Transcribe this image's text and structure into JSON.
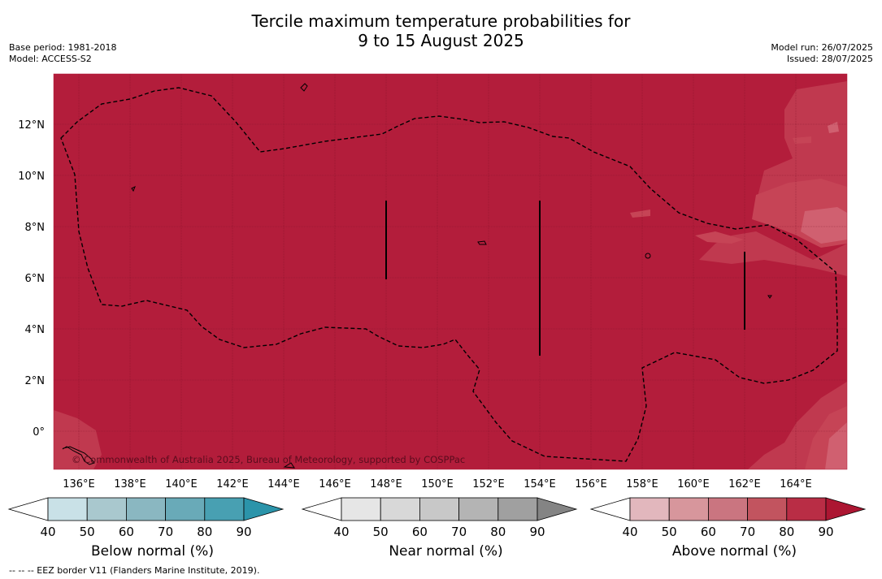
{
  "title": {
    "line1": "Tercile maximum temperature probabilities for",
    "line2": "9 to 15 August 2025"
  },
  "meta": {
    "base_period": "Base period: 1981-2018",
    "model": "Model: ACCESS-S2",
    "model_run": "Model run: 26/07/2025",
    "issued": "Issued: 28/07/2025"
  },
  "map": {
    "lat_labels": [
      "12°N",
      "10°N",
      "8°N",
      "6°N",
      "4°N",
      "2°N",
      "0°"
    ],
    "lon_labels": [
      "136°E",
      "138°E",
      "140°E",
      "142°E",
      "144°E",
      "146°E",
      "148°E",
      "150°E",
      "152°E",
      "154°E",
      "156°E",
      "158°E",
      "160°E",
      "162°E",
      "164°E"
    ],
    "copyright": "© Commonwealth of Australia 2025, Bureau of Meteorology, supported by COSPPac",
    "background_color": "#b31d3b",
    "lighter_color": "#c64456",
    "lightest_color": "#d06070"
  },
  "colorbars": [
    {
      "title": "Below normal (%)",
      "ticks": [
        "40",
        "50",
        "60",
        "70",
        "80",
        "90"
      ],
      "colors": [
        "#ffffff",
        "#c9e1e7",
        "#a9c8ce",
        "#8ab7c1",
        "#69aab8",
        "#48a0b2",
        "#2b94aa"
      ]
    },
    {
      "title": "Near normal (%)",
      "ticks": [
        "40",
        "50",
        "60",
        "70",
        "80",
        "90"
      ],
      "colors": [
        "#ffffff",
        "#e6e6e6",
        "#d8d8d8",
        "#c8c8c8",
        "#b4b4b4",
        "#a0a0a0",
        "#848484"
      ]
    },
    {
      "title": "Above normal (%)",
      "ticks": [
        "40",
        "50",
        "60",
        "70",
        "80",
        "90"
      ],
      "colors": [
        "#ffffff",
        "#e2b7bd",
        "#d7969c",
        "#ca7580",
        "#c2545f",
        "#b92d45",
        "#ac1632"
      ]
    }
  ],
  "footnote": "--  --  -- EEZ border V11 (Flanders Marine Institute, 2019)."
}
